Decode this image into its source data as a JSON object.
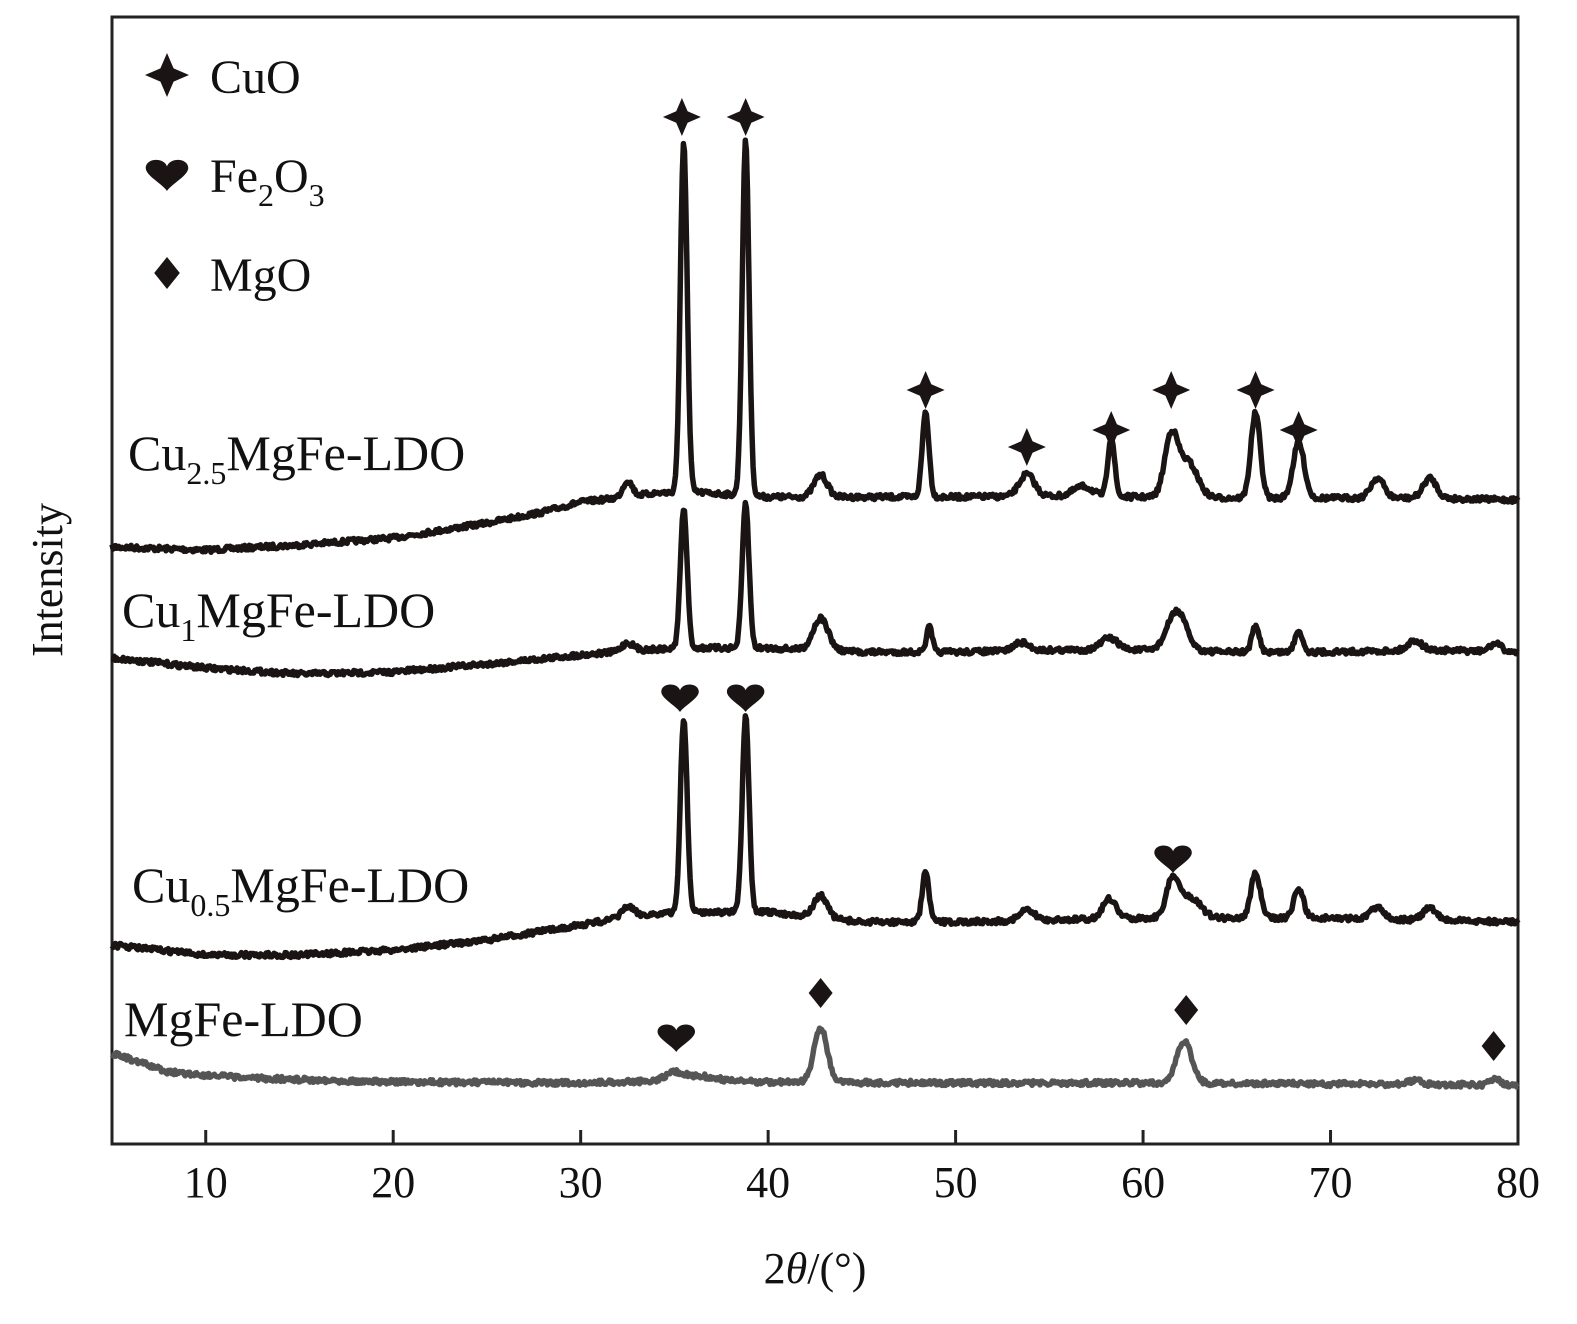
{
  "chart_data": {
    "type": "line",
    "xlabel_prefix": "2",
    "xlabel_theta": "θ",
    "xlabel_suffix": "/(°)",
    "ylabel": "Intensity",
    "xlim": [
      5,
      80
    ],
    "x_ticks": [
      "10",
      "20",
      "30",
      "40",
      "50",
      "60",
      "70",
      "80"
    ],
    "y_ticks": [],
    "grid": false,
    "legend_position": "top-left",
    "legend": [
      {
        "marker": "star4-icon",
        "label": "CuO",
        "sub": "",
        "tail": ""
      },
      {
        "marker": "heart-icon",
        "label": "Fe",
        "sub": "2",
        "tail": "O",
        "sub2": "3"
      },
      {
        "marker": "diamond-icon",
        "label": "MgO",
        "sub": "",
        "tail": ""
      }
    ],
    "colors": {
      "dark": "#1a1414",
      "gray": "#555555"
    },
    "series": [
      {
        "name_prefix": "Cu",
        "name_sub": "2.5",
        "name_suffix": "MgFe-LDO",
        "color": "dark",
        "baseline": [
          [
            5,
            547
          ],
          [
            10,
            550
          ],
          [
            15,
            545
          ],
          [
            20,
            538
          ],
          [
            25,
            523
          ],
          [
            28,
            512
          ],
          [
            30,
            502
          ],
          [
            32,
            498
          ],
          [
            34,
            493
          ],
          [
            36,
            492
          ],
          [
            40,
            497
          ],
          [
            45,
            497
          ],
          [
            50,
            497
          ],
          [
            55,
            496
          ],
          [
            60,
            497
          ],
          [
            65,
            498
          ],
          [
            70,
            498
          ],
          [
            75,
            498
          ],
          [
            80,
            500
          ]
        ],
        "peaks": [
          [
            32.5,
            16,
            0.25
          ],
          [
            35.5,
            350,
            0.18
          ],
          [
            38.8,
            355,
            0.18
          ],
          [
            42.8,
            22,
            0.35
          ],
          [
            48.4,
            85,
            0.18
          ],
          [
            53.8,
            22,
            0.4
          ],
          [
            56.8,
            10,
            0.5
          ],
          [
            58.3,
            60,
            0.18
          ],
          [
            61.5,
            60,
            0.35
          ],
          [
            62.4,
            35,
            0.5
          ],
          [
            66.0,
            85,
            0.25
          ],
          [
            68.3,
            55,
            0.3
          ],
          [
            72.5,
            20,
            0.35
          ],
          [
            75.3,
            20,
            0.35
          ]
        ]
      },
      {
        "name_prefix": "Cu",
        "name_sub": "1",
        "name_suffix": "MgFe-LDO",
        "color": "dark",
        "baseline": [
          [
            5,
            658
          ],
          [
            10,
            668
          ],
          [
            15,
            674
          ],
          [
            20,
            672
          ],
          [
            25,
            664
          ],
          [
            30,
            655
          ],
          [
            33,
            650
          ],
          [
            36,
            648
          ],
          [
            40,
            648
          ],
          [
            45,
            652
          ],
          [
            50,
            652
          ],
          [
            55,
            650
          ],
          [
            60,
            650
          ],
          [
            65,
            652
          ],
          [
            70,
            652
          ],
          [
            75,
            650
          ],
          [
            80,
            652
          ]
        ],
        "peaks": [
          [
            32.5,
            8,
            0.3
          ],
          [
            35.5,
            140,
            0.18
          ],
          [
            38.8,
            145,
            0.18
          ],
          [
            42.8,
            32,
            0.4
          ],
          [
            48.6,
            25,
            0.15
          ],
          [
            53.5,
            8,
            0.4
          ],
          [
            58.2,
            12,
            0.45
          ],
          [
            61.8,
            40,
            0.5
          ],
          [
            66.0,
            25,
            0.2
          ],
          [
            68.3,
            22,
            0.2
          ],
          [
            74.5,
            10,
            0.35
          ],
          [
            78.8,
            8,
            0.3
          ]
        ]
      },
      {
        "name_prefix": "Cu",
        "name_sub": "0.5",
        "name_suffix": "MgFe-LDO",
        "color": "dark",
        "baseline": [
          [
            5,
            945
          ],
          [
            10,
            955
          ],
          [
            15,
            955
          ],
          [
            20,
            950
          ],
          [
            25,
            940
          ],
          [
            30,
            925
          ],
          [
            33,
            915
          ],
          [
            36,
            912
          ],
          [
            40,
            912
          ],
          [
            45,
            922
          ],
          [
            50,
            922
          ],
          [
            55,
            920
          ],
          [
            60,
            918
          ],
          [
            65,
            918
          ],
          [
            70,
            918
          ],
          [
            75,
            920
          ],
          [
            80,
            922
          ]
        ],
        "peaks": [
          [
            32.5,
            10,
            0.3
          ],
          [
            35.5,
            195,
            0.18
          ],
          [
            38.8,
            195,
            0.18
          ],
          [
            42.8,
            22,
            0.35
          ],
          [
            48.4,
            50,
            0.18
          ],
          [
            53.8,
            10,
            0.4
          ],
          [
            58.2,
            20,
            0.35
          ],
          [
            61.6,
            40,
            0.35
          ],
          [
            62.6,
            20,
            0.5
          ],
          [
            66.0,
            45,
            0.25
          ],
          [
            68.3,
            30,
            0.25
          ],
          [
            72.5,
            12,
            0.35
          ],
          [
            75.3,
            12,
            0.35
          ]
        ]
      },
      {
        "name_prefix": "",
        "name_sub": "",
        "name_suffix": "MgFe-LDO",
        "color": "gray",
        "baseline": [
          [
            5,
            1053
          ],
          [
            8,
            1072
          ],
          [
            12,
            1078
          ],
          [
            20,
            1082
          ],
          [
            30,
            1083
          ],
          [
            36,
            1080
          ],
          [
            40,
            1082
          ],
          [
            50,
            1083
          ],
          [
            60,
            1083
          ],
          [
            70,
            1084
          ],
          [
            75,
            1084
          ],
          [
            80,
            1086
          ]
        ],
        "peaks": [
          [
            35.0,
            8,
            0.5
          ],
          [
            36.5,
            4,
            0.7
          ],
          [
            42.8,
            55,
            0.35
          ],
          [
            62.2,
            42,
            0.4
          ],
          [
            74.5,
            4,
            0.3
          ],
          [
            78.8,
            6,
            0.3
          ]
        ]
      }
    ],
    "peak_markers": [
      {
        "type": "star4-icon",
        "x": 35.4,
        "row": 0
      },
      {
        "type": "star4-icon",
        "x": 38.8,
        "row": 0
      },
      {
        "type": "star4-icon",
        "x": 48.4,
        "row": 1
      },
      {
        "type": "star4-icon",
        "x": 53.8,
        "row": 3
      },
      {
        "type": "star4-icon",
        "x": 58.3,
        "row": 2
      },
      {
        "type": "star4-icon",
        "x": 61.5,
        "row": 1
      },
      {
        "type": "star4-icon",
        "x": 66.0,
        "row": 1
      },
      {
        "type": "star4-icon",
        "x": 68.3,
        "row": 2
      },
      {
        "type": "heart-icon",
        "x": 35.3,
        "row": 4
      },
      {
        "type": "heart-icon",
        "x": 38.8,
        "row": 4
      },
      {
        "type": "heart-icon",
        "x": 61.6,
        "row": 5
      },
      {
        "type": "heart-icon",
        "x": 35.1,
        "row": 6
      },
      {
        "type": "diamond-icon",
        "x": 42.8,
        "row": 7
      },
      {
        "type": "diamond-icon",
        "x": 62.3,
        "row": 8
      },
      {
        "type": "diamond-icon",
        "x": 78.7,
        "row": 9
      }
    ]
  }
}
